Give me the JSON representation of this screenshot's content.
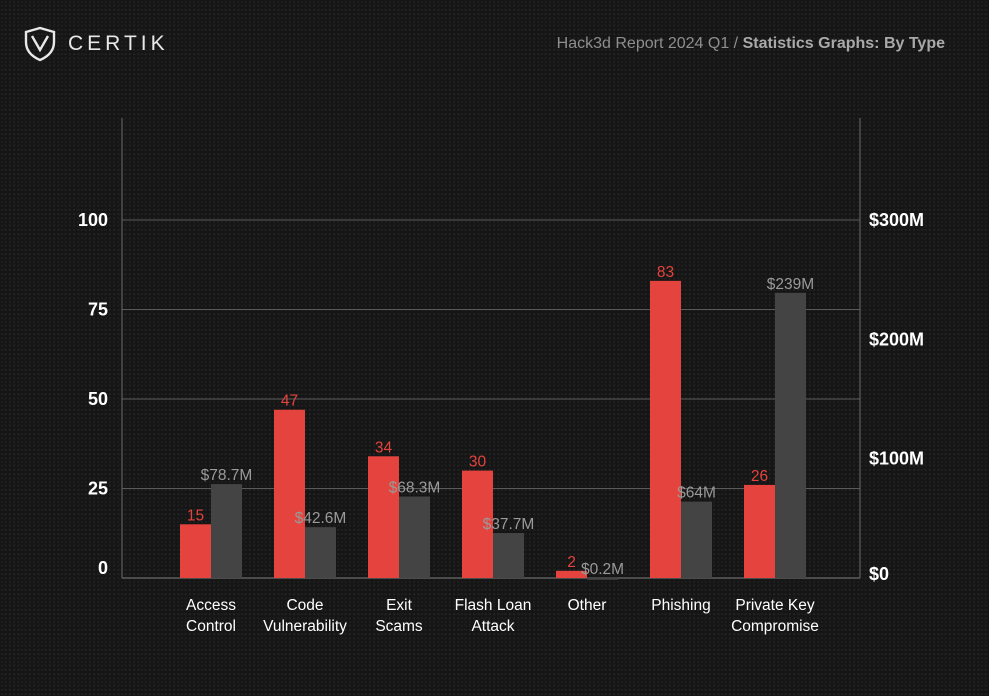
{
  "brand": {
    "name": "CERTIK",
    "logo_icon": "certik-shield-icon"
  },
  "header": {
    "report": "Hack3d Report 2024 Q1 / ",
    "subtitle": "Statistics Graphs: By Type"
  },
  "colors": {
    "count": "#e5433d",
    "loss": "#444444",
    "background": "#151515"
  },
  "chart_data": {
    "type": "bar",
    "categories": [
      [
        "Access",
        "Control"
      ],
      [
        "Code",
        "Vulnerability"
      ],
      [
        "Exit",
        "Scams"
      ],
      [
        "Flash Loan",
        "Attack"
      ],
      [
        "Other"
      ],
      [
        "Phishing"
      ],
      [
        "Private Key",
        "Compromise"
      ]
    ],
    "series": [
      {
        "axis": "left",
        "color": "#e5433d",
        "values": [
          15,
          47,
          34,
          30,
          2,
          83,
          26
        ],
        "labels": [
          "15",
          "47",
          "34",
          "30",
          "2",
          "83",
          "26"
        ]
      },
      {
        "axis": "right",
        "color": "#444444",
        "values": [
          78.7,
          42.6,
          68.3,
          37.7,
          0.2,
          64,
          239
        ],
        "labels": [
          "$78.7M",
          "$42.6M",
          "$68.3M",
          "$37.7M",
          "$0.2M",
          "$64M",
          "$239M"
        ]
      }
    ],
    "left_axis": {
      "ylim": [
        0,
        100
      ],
      "ticks": [
        0,
        25,
        50,
        75,
        100
      ],
      "tick_labels": [
        "0",
        "25",
        "50",
        "75",
        "100"
      ]
    },
    "right_axis": {
      "ylim": [
        0,
        300
      ],
      "ticks": [
        0,
        100,
        200,
        300
      ],
      "tick_labels": [
        "$0",
        "$100M",
        "$200M",
        "$300M"
      ]
    },
    "grid": true
  }
}
